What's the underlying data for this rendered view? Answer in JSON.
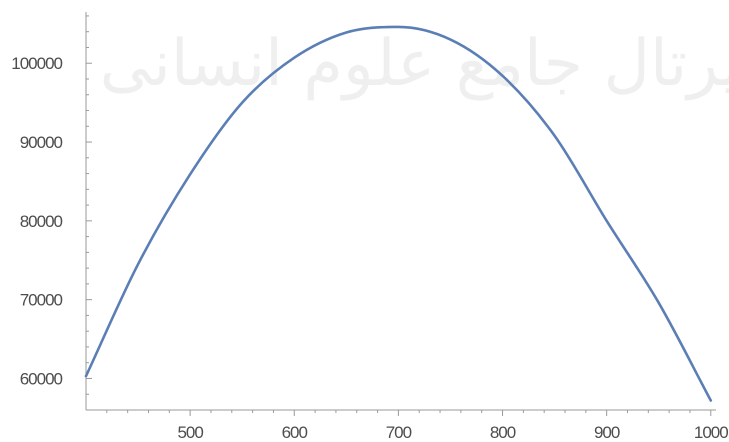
{
  "chart_data": {
    "type": "line",
    "title": "",
    "xlabel": "",
    "ylabel": "",
    "xlim": [
      400,
      1005
    ],
    "ylim": [
      56000,
      106500
    ],
    "x_ticks": [
      500,
      600,
      700,
      800,
      900,
      1000
    ],
    "x_tick_labels": [
      "500",
      "600",
      "700",
      "800",
      "900",
      "1000"
    ],
    "y_ticks": [
      60000,
      70000,
      80000,
      90000,
      100000
    ],
    "y_tick_labels": [
      "60000",
      "70000",
      "80000",
      "90000",
      "100000"
    ],
    "grid": false,
    "legend": "none",
    "series": [
      {
        "color": "#5b7fb5",
        "x": [
          400,
          450,
          500,
          550,
          600,
          650,
          695,
          700,
          750,
          800,
          850,
          900,
          950,
          1000
        ],
        "y": [
          60300,
          74500,
          85900,
          95000,
          100700,
          103900,
          104600,
          104600,
          103000,
          98400,
          90800,
          80000,
          69600,
          57200
        ]
      }
    ]
  },
  "watermark": "پرتال جامع علوم انسانی"
}
